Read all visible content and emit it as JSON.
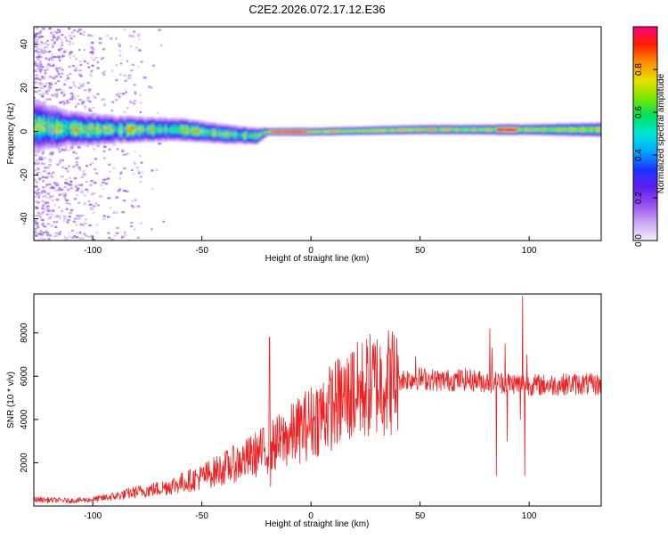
{
  "figure": {
    "title": "C2E2.2026.072.17.12.E36"
  },
  "chart_data": [
    {
      "type": "heatmap",
      "title": "C2E2.2026.072.17.12.E36",
      "xlabel": "Height of straight line (km)",
      "ylabel": "Frequency (Hz)",
      "xlim": [
        -127,
        133
      ],
      "ylim": [
        -50,
        48
      ],
      "x_ticks": [
        -100,
        -50,
        0,
        50,
        100
      ],
      "y_ticks": [
        -40,
        -20,
        0,
        20,
        40
      ],
      "colorbar": {
        "label": "Normalized spectral amplitude",
        "range": [
          0,
          1
        ],
        "ticks": [
          0.0,
          0.2,
          0.4,
          0.6,
          0.8
        ],
        "colormap": [
          "#f4eefc",
          "#c8a8f4",
          "#9b4ff0",
          "#5a1ef0",
          "#1b36ff",
          "#00a8ff",
          "#00e6d6",
          "#00e060",
          "#7ae600",
          "#e8e000",
          "#ff8c00",
          "#ff2000",
          "#ff007f"
        ]
      },
      "band_center_frequency_hz": [
        {
          "x": -127,
          "f": 3
        },
        {
          "x": -120,
          "f": 2
        },
        {
          "x": -100,
          "f": 1
        },
        {
          "x": -80,
          "f": 1
        },
        {
          "x": -60,
          "f": 1
        },
        {
          "x": -40,
          "f": -1
        },
        {
          "x": -25,
          "f": -2
        },
        {
          "x": -20,
          "f": 0
        },
        {
          "x": 0,
          "f": 0
        },
        {
          "x": 50,
          "f": 1
        },
        {
          "x": 100,
          "f": 1
        },
        {
          "x": 133,
          "f": 1
        }
      ],
      "band_halfwidth_hz": [
        {
          "x": -127,
          "w": 12
        },
        {
          "x": -110,
          "w": 8
        },
        {
          "x": -80,
          "w": 6
        },
        {
          "x": -50,
          "w": 5
        },
        {
          "x": -25,
          "w": 4
        },
        {
          "x": -20,
          "w": 2
        },
        {
          "x": 100,
          "w": 3
        },
        {
          "x": 133,
          "w": 4
        }
      ]
    },
    {
      "type": "line",
      "xlabel": "Height of straight line (km)",
      "ylabel": "SNR (10 * v/v)",
      "xlim": [
        -127,
        133
      ],
      "ylim": [
        0,
        9800
      ],
      "x_ticks": [
        -100,
        -50,
        0,
        50,
        100
      ],
      "y_ticks": [
        2000,
        4000,
        6000,
        8000
      ],
      "series": [
        {
          "color": "#ee2222",
          "trend": [
            {
              "x": -127,
              "y": 300
            },
            {
              "x": -110,
              "y": 250
            },
            {
              "x": -100,
              "y": 300
            },
            {
              "x": -90,
              "y": 450
            },
            {
              "x": -80,
              "y": 650
            },
            {
              "x": -70,
              "y": 800
            },
            {
              "x": -60,
              "y": 1050
            },
            {
              "x": -50,
              "y": 1350
            },
            {
              "x": -40,
              "y": 1750
            },
            {
              "x": -30,
              "y": 2150
            },
            {
              "x": -20,
              "y": 2650
            },
            {
              "x": -10,
              "y": 3200
            },
            {
              "x": 0,
              "y": 3900
            },
            {
              "x": 10,
              "y": 4650
            },
            {
              "x": 20,
              "y": 5200
            },
            {
              "x": 30,
              "y": 5700
            },
            {
              "x": 40,
              "y": 5850
            },
            {
              "x": 50,
              "y": 5900
            },
            {
              "x": 60,
              "y": 5800
            },
            {
              "x": 70,
              "y": 5850
            },
            {
              "x": 80,
              "y": 5750
            },
            {
              "x": 90,
              "y": 5700
            },
            {
              "x": 100,
              "y": 5600
            },
            {
              "x": 110,
              "y": 5600
            },
            {
              "x": 120,
              "y": 5650
            },
            {
              "x": 133,
              "y": 5600
            }
          ],
          "spikes": [
            {
              "x": -19,
              "y": 7800
            },
            {
              "x": -18.5,
              "y": 900
            },
            {
              "x": 19,
              "y": 7100
            },
            {
              "x": 48,
              "y": 6900
            },
            {
              "x": 82,
              "y": 8200
            },
            {
              "x": 83,
              "y": 7300
            },
            {
              "x": 85,
              "y": 1400
            },
            {
              "x": 89,
              "y": 7500
            },
            {
              "x": 90,
              "y": 3000
            },
            {
              "x": 96,
              "y": 4000
            },
            {
              "x": 97,
              "y": 9700
            },
            {
              "x": 98,
              "y": 1400
            },
            {
              "x": 99,
              "y": 7000
            }
          ]
        }
      ]
    }
  ]
}
